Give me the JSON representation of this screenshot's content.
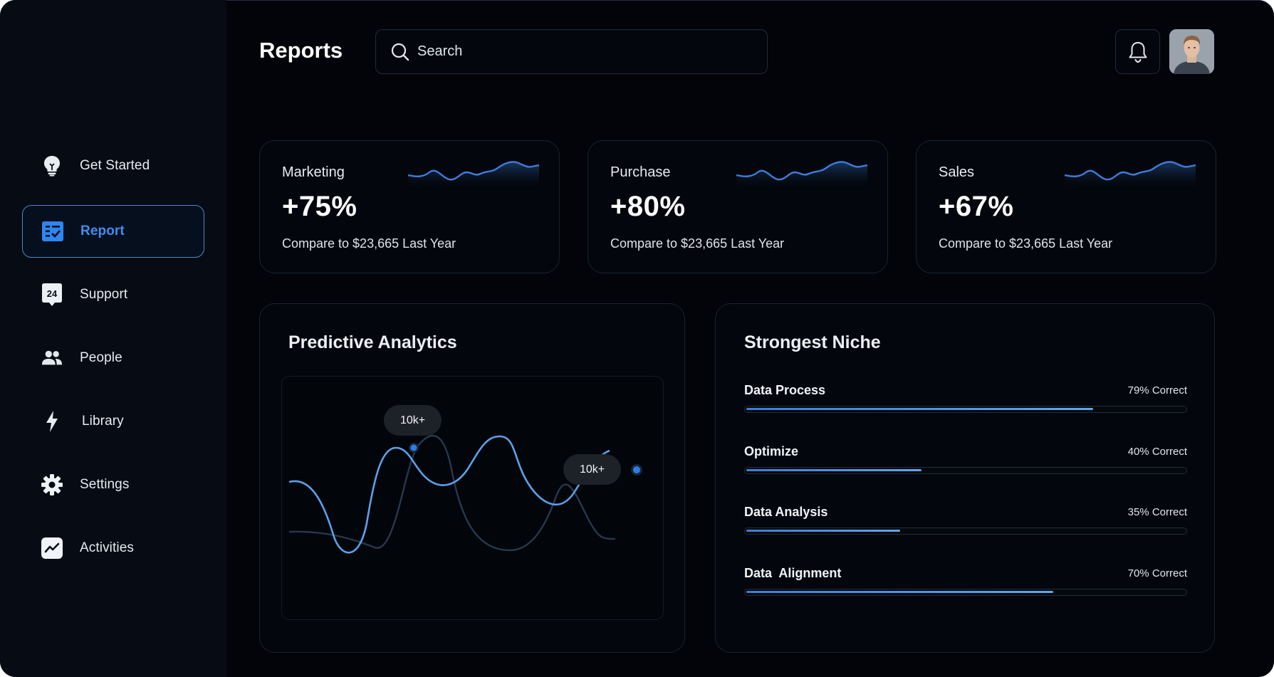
{
  "header": {
    "title": "Reports",
    "search_placeholder": "Search"
  },
  "sidebar": {
    "items": [
      {
        "label": "Get Started",
        "icon": "lightbulb-icon",
        "active": false
      },
      {
        "label": "Report",
        "icon": "report-icon",
        "active": true
      },
      {
        "label": "Support",
        "icon": "support-24-icon",
        "active": false
      },
      {
        "label": "People",
        "icon": "people-icon",
        "active": false
      },
      {
        "label": "Library",
        "icon": "lightning-icon",
        "active": false
      },
      {
        "label": "Settings",
        "icon": "gear-icon",
        "active": false
      },
      {
        "label": "Activities",
        "icon": "activity-chart-icon",
        "active": false
      }
    ]
  },
  "stats": [
    {
      "title": "Marketing",
      "value": "+75%",
      "subtitle": "Compare to $23,665 Last Year"
    },
    {
      "title": "Purchase",
      "value": "+80%",
      "subtitle": "Compare to $23,665 Last Year"
    },
    {
      "title": "Sales",
      "value": "+67%",
      "subtitle": "Compare to $23,665 Last Year"
    }
  ],
  "predictive": {
    "title": "Predictive Analytics",
    "markers": [
      {
        "label": "10k+"
      },
      {
        "label": "10k+"
      }
    ]
  },
  "niche": {
    "title": "Strongest Niche",
    "items": [
      {
        "label": "Data Process",
        "percent_label": "79% Correct",
        "value": 0.79
      },
      {
        "label": "Optimize",
        "percent_label": "40% Correct",
        "value": 0.4
      },
      {
        "label": "Data Analysis",
        "percent_label": "35% Correct",
        "value": 0.35
      },
      {
        "label": "Data  Alignment",
        "percent_label": "70% Correct",
        "value": 0.7
      }
    ]
  },
  "colors": {
    "accent": "#3d8ff0",
    "background": "#02040a",
    "sidebar": "#060b14",
    "card_border": "#1c222c",
    "line_primary": "#5aa2ea",
    "line_secondary": "#26394f"
  }
}
